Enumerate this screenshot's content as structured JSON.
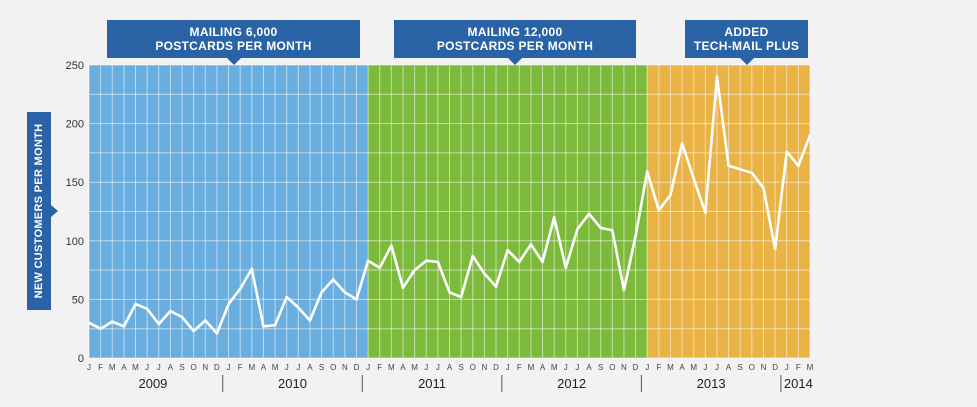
{
  "chart_data": {
    "type": "line",
    "ylabel": "NEW CUSTOMERS PER MONTH",
    "ylim": [
      0,
      250
    ],
    "yticks": [
      0,
      50,
      100,
      150,
      200,
      250
    ],
    "x_month_labels": [
      "J",
      "F",
      "M",
      "A",
      "M",
      "J",
      "J",
      "A",
      "S",
      "O",
      "N",
      "D",
      "J",
      "F",
      "M",
      "A",
      "M",
      "J",
      "J",
      "A",
      "S",
      "O",
      "N",
      "D",
      "J",
      "F",
      "M",
      "A",
      "M",
      "J",
      "J",
      "A",
      "S",
      "O",
      "N",
      "D",
      "J",
      "F",
      "M",
      "A",
      "M",
      "J",
      "J",
      "A",
      "S",
      "O",
      "N",
      "D",
      "J",
      "F",
      "M",
      "A",
      "M",
      "J",
      "J",
      "A",
      "S",
      "O",
      "N",
      "D",
      "J",
      "F",
      "M"
    ],
    "year_labels": [
      {
        "label": "2009",
        "start_month": 0,
        "end_month": 11
      },
      {
        "label": "2010",
        "start_month": 12,
        "end_month": 23
      },
      {
        "label": "2011",
        "start_month": 24,
        "end_month": 35
      },
      {
        "label": "2012",
        "start_month": 36,
        "end_month": 47
      },
      {
        "label": "2013",
        "start_month": 48,
        "end_month": 59
      },
      {
        "label": "2014",
        "start_month": 60,
        "end_month": 62
      }
    ],
    "grid": true,
    "phases": [
      {
        "label": "MAILING 6,000 POSTCARDS PER MONTH",
        "start_month": 0,
        "end_month": 24,
        "color": "#6aaee0"
      },
      {
        "label": "MAILING 12,000 POSTCARDS PER MONTH",
        "start_month": 24,
        "end_month": 48,
        "color": "#7cba3c"
      },
      {
        "label": "ADDED TECH-MAIL PLUS",
        "start_month": 48,
        "end_month": 62,
        "color": "#eab346"
      }
    ],
    "series": [
      {
        "values": [
          30,
          25,
          31,
          27,
          46,
          42,
          29,
          40,
          35,
          23,
          32,
          21,
          46,
          59,
          76,
          27,
          28,
          52,
          43,
          32,
          56,
          67,
          56,
          50,
          83,
          77,
          96,
          60,
          75,
          83,
          82,
          56,
          52,
          87,
          72,
          61,
          92,
          82,
          97,
          82,
          120,
          77,
          110,
          123,
          111,
          109,
          58,
          104,
          159,
          126,
          139,
          183,
          153,
          124,
          240,
          164,
          161,
          158,
          145,
          93,
          176,
          164,
          190
        ]
      }
    ]
  },
  "callouts": {
    "phase1_line1": "MAILING 6,000",
    "phase1_line2": "POSTCARDS PER MONTH",
    "phase2_line1": "MAILING 12,000",
    "phase2_line2": "POSTCARDS PER MONTH",
    "phase3_line1": "ADDED",
    "phase3_line2": "TECH-MAIL PLUS"
  },
  "colors": {
    "callout_bg": "#2a62a6",
    "line": "#ffffff",
    "axis_text": "#333333"
  }
}
